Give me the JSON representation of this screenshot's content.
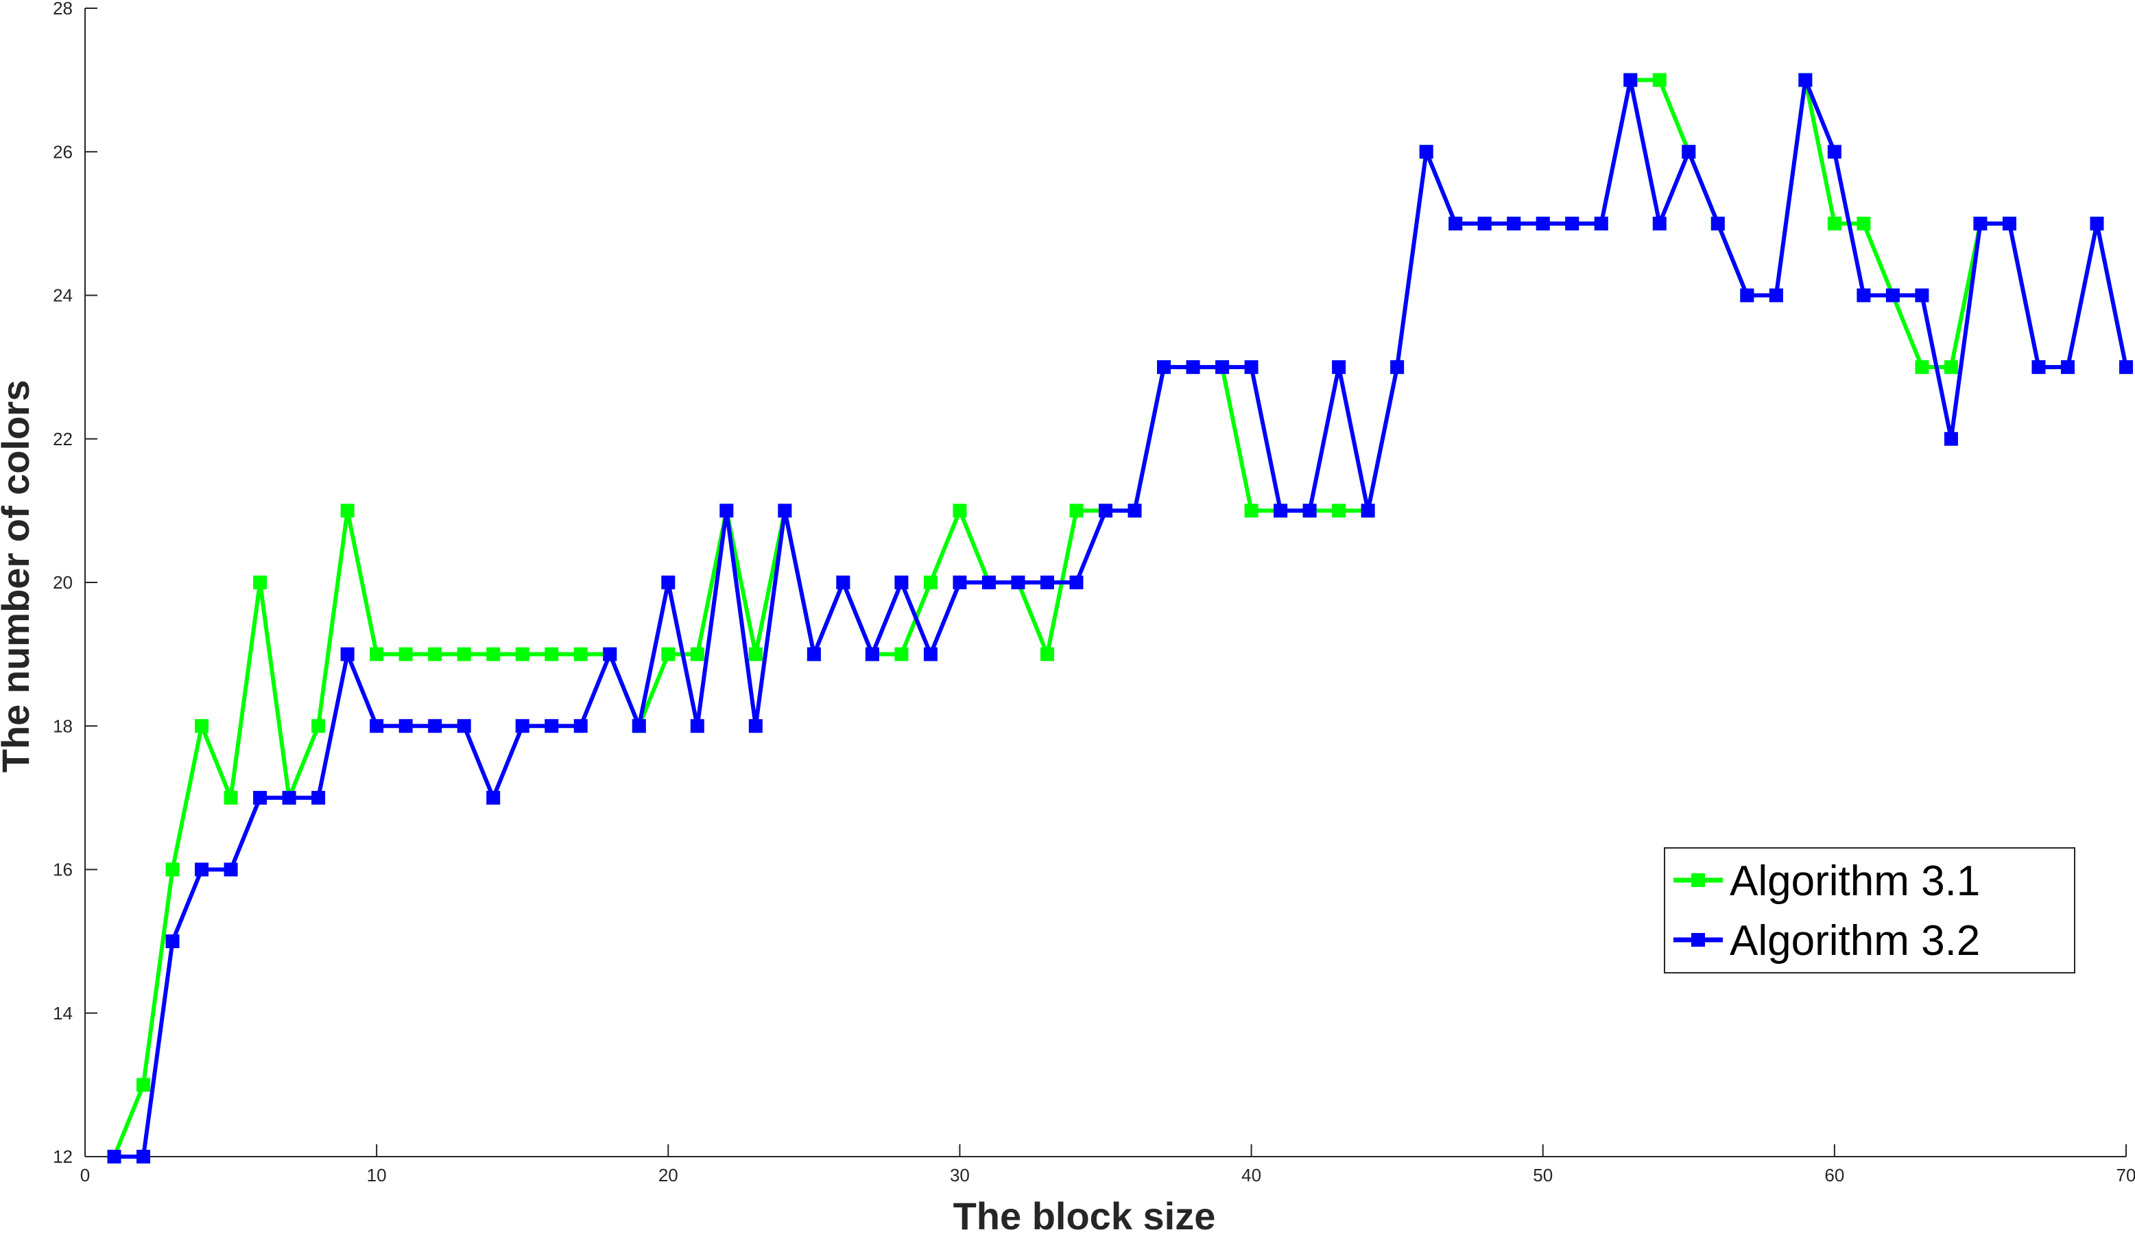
{
  "chart_data": {
    "type": "line",
    "title": "",
    "xlabel": "The block size",
    "ylabel": "The number of colors",
    "xlim": [
      0,
      70
    ],
    "ylim": [
      12,
      28
    ],
    "xticks": [
      0,
      10,
      20,
      30,
      40,
      50,
      60,
      70
    ],
    "yticks": [
      12,
      14,
      16,
      18,
      20,
      22,
      24,
      26,
      28
    ],
    "grid": false,
    "legend_position": "bottom-right",
    "x": [
      1,
      2,
      3,
      4,
      5,
      6,
      7,
      8,
      9,
      10,
      11,
      12,
      13,
      14,
      15,
      16,
      17,
      18,
      19,
      20,
      21,
      22,
      23,
      24,
      25,
      26,
      27,
      28,
      29,
      30,
      31,
      32,
      33,
      34,
      35,
      36,
      37,
      38,
      39,
      40,
      41,
      42,
      43,
      44,
      45,
      46,
      47,
      48,
      49,
      50,
      51,
      52,
      53,
      54,
      55,
      56,
      57,
      58,
      59,
      60,
      61,
      62,
      63,
      64,
      65,
      66,
      67,
      68,
      69,
      70
    ],
    "series": [
      {
        "name": "Algorithm 3.1",
        "color": "#00ff00",
        "values": [
          12,
          13,
          16,
          18,
          17,
          20,
          17,
          18,
          21,
          19,
          19,
          19,
          19,
          19,
          19,
          19,
          19,
          19,
          18,
          19,
          19,
          21,
          19,
          21,
          19,
          20,
          19,
          19,
          20,
          21,
          20,
          20,
          19,
          21,
          21,
          21,
          23,
          23,
          23,
          21,
          21,
          21,
          21,
          21,
          23,
          26,
          25,
          25,
          25,
          25,
          25,
          25,
          27,
          27,
          26,
          25,
          24,
          24,
          27,
          25,
          25,
          24,
          23,
          23,
          25,
          25,
          23,
          23,
          25,
          23
        ]
      },
      {
        "name": "Algorithm 3.2",
        "color": "#0000ff",
        "values": [
          12,
          12,
          15,
          16,
          16,
          17,
          17,
          17,
          19,
          18,
          18,
          18,
          18,
          17,
          18,
          18,
          18,
          19,
          18,
          20,
          18,
          21,
          18,
          21,
          19,
          20,
          19,
          20,
          19,
          20,
          20,
          20,
          20,
          20,
          21,
          21,
          23,
          23,
          23,
          23,
          21,
          21,
          23,
          21,
          23,
          26,
          25,
          25,
          25,
          25,
          25,
          25,
          27,
          25,
          26,
          25,
          24,
          24,
          27,
          26,
          24,
          24,
          24,
          22,
          25,
          25,
          23,
          23,
          25,
          23
        ]
      }
    ]
  }
}
